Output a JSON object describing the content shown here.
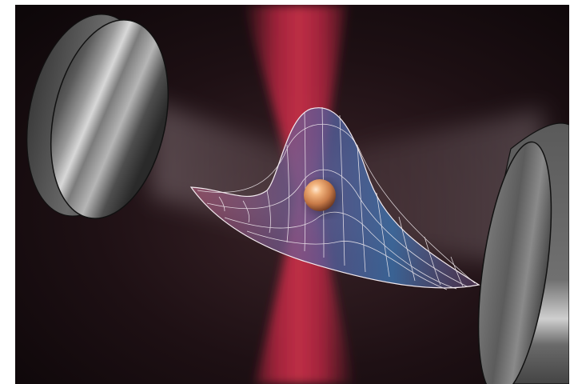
{
  "scene": {
    "subject": "atom-in-optical-cavity-illustration",
    "background_color": "#1b0e12",
    "laser_color": "#c22a44",
    "mirror_color": "#6f6f6f",
    "atom_color": "#d48a5a",
    "wavefunction_colors": [
      "#3c5f9a",
      "#b65a7c",
      "#ffffff"
    ]
  }
}
